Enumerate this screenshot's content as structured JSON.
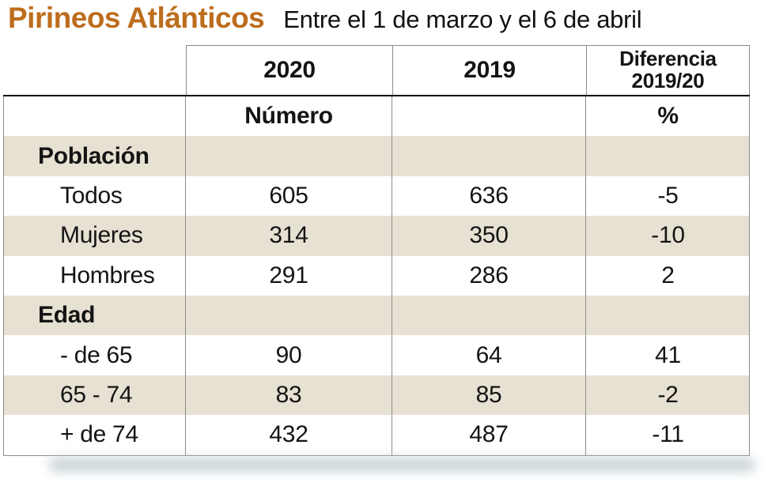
{
  "page": {
    "title": "Pirineos Atlánticos",
    "subtitle": "Entre el 1 de marzo y el 6 de abril"
  },
  "colors": {
    "title_orange": "#bc6d1d",
    "row_shade_beige": "#e7e1d3",
    "border_gray": "#8c8c8c",
    "heavy_rule_black": "#000000",
    "shadow_gray_blue": "#b7c4cc"
  },
  "table": {
    "headers": {
      "y2020": "2020",
      "y2019": "2019",
      "diff_line1": "Diferencia",
      "diff_line2": "2019/20"
    },
    "units": {
      "numero": "Número",
      "percent": "%"
    },
    "rows": [
      {
        "label": "Población",
        "v2020": "",
        "v2019": "",
        "diff": ""
      },
      {
        "label": "Todos",
        "v2020": "605",
        "v2019": "636",
        "diff": "-5"
      },
      {
        "label": "Mujeres",
        "v2020": "314",
        "v2019": "350",
        "diff": "-10"
      },
      {
        "label": "Hombres",
        "v2020": "291",
        "v2019": "286",
        "diff": "2"
      },
      {
        "label": "Edad",
        "v2020": "",
        "v2019": "",
        "diff": ""
      },
      {
        "label": "- de 65",
        "v2020": "90",
        "v2019": "64",
        "diff": "41"
      },
      {
        "label": "65 - 74",
        "v2020": "83",
        "v2019": "85",
        "diff": "-2"
      },
      {
        "label": "+ de 74",
        "v2020": "432",
        "v2019": "487",
        "diff": "-11"
      }
    ]
  },
  "chart_data": {
    "type": "table",
    "title": "Pirineos Atlánticos",
    "subtitle": "Entre el 1 de marzo y el 6 de abril",
    "columns": [
      "",
      "2020",
      "2019",
      "Diferencia 2019/20"
    ],
    "unit_row": [
      "",
      "Número",
      "",
      "%"
    ],
    "sections": [
      {
        "name": "Población",
        "rows": [
          {
            "label": "Todos",
            "2020": 605,
            "2019": 636,
            "diferencia_pct": -5
          },
          {
            "label": "Mujeres",
            "2020": 314,
            "2019": 350,
            "diferencia_pct": -10
          },
          {
            "label": "Hombres",
            "2020": 291,
            "2019": 286,
            "diferencia_pct": 2
          }
        ]
      },
      {
        "name": "Edad",
        "rows": [
          {
            "label": "- de 65",
            "2020": 90,
            "2019": 64,
            "diferencia_pct": 41
          },
          {
            "label": "65 - 74",
            "2020": 83,
            "2019": 85,
            "diferencia_pct": -2
          },
          {
            "label": "+ de 74",
            "2020": 432,
            "2019": 487,
            "diferencia_pct": -11
          }
        ]
      }
    ]
  }
}
